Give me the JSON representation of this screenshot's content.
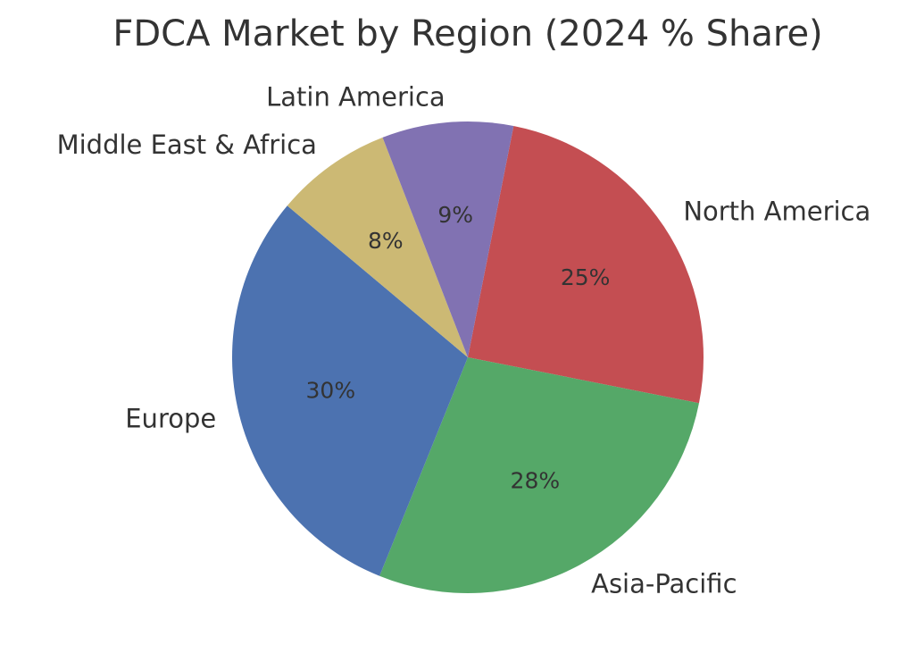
{
  "chart_data": {
    "type": "pie",
    "title": "FDCA Market by Region (2024 % Share)",
    "categories": [
      "North America",
      "Asia-Pacific",
      "Europe",
      "Middle East & Africa",
      "Latin America"
    ],
    "values": [
      25,
      28,
      30,
      8,
      9
    ],
    "value_labels": [
      "25%",
      "28%",
      "30%",
      "8%",
      "9%"
    ],
    "colors": [
      "#c44e52",
      "#55a868",
      "#4c72b0",
      "#ccb974",
      "#8172b2"
    ]
  }
}
